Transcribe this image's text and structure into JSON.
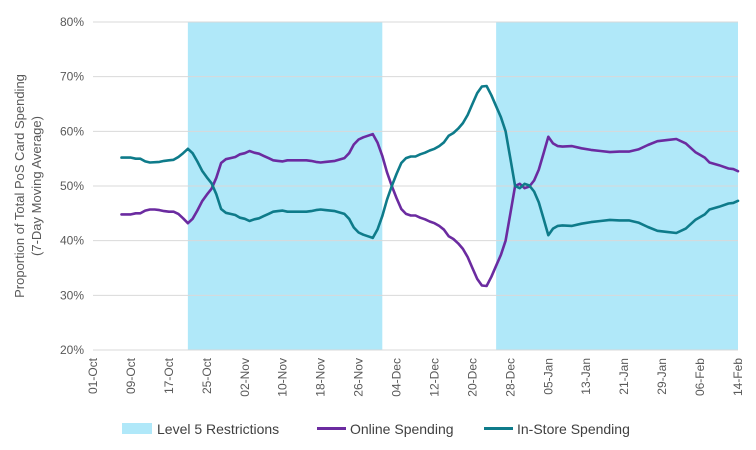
{
  "chart_data": {
    "type": "line",
    "ylabel_lines": [
      "Proportion of Total PoS Card Spending",
      "(7-Day Moving Average)"
    ],
    "ylim": [
      20,
      80
    ],
    "y_ticks": [
      20,
      30,
      40,
      50,
      60,
      70,
      80
    ],
    "y_tick_labels": [
      "20%",
      "30%",
      "40%",
      "50%",
      "60%",
      "70%",
      "80%"
    ],
    "x_range": [
      "2020-10-01",
      "2021-02-14"
    ],
    "x_ticks": [
      "2020-10-01",
      "2020-10-09",
      "2020-10-17",
      "2020-10-25",
      "2020-11-02",
      "2020-11-10",
      "2020-11-18",
      "2020-11-26",
      "2020-12-04",
      "2020-12-12",
      "2020-12-20",
      "2020-12-28",
      "2021-01-05",
      "2021-01-13",
      "2021-01-21",
      "2021-01-29",
      "2021-02-06",
      "2021-02-14"
    ],
    "x_tick_labels": [
      "01-Oct",
      "09-Oct",
      "17-Oct",
      "25-Oct",
      "02-Nov",
      "10-Nov",
      "18-Nov",
      "26-Nov",
      "04-Dec",
      "12-Dec",
      "20-Dec",
      "28-Dec",
      "05-Jan",
      "13-Jan",
      "21-Jan",
      "29-Jan",
      "06-Feb",
      "14-Feb"
    ],
    "grid": {
      "horizontal": true,
      "vertical": false
    },
    "legend_position": "bottom",
    "shaded_periods": {
      "name": "Level 5 Restrictions",
      "color": "#b0e8f9",
      "ranges": [
        [
          "2020-10-21",
          "2020-12-01"
        ],
        [
          "2020-12-25",
          "2021-02-14"
        ]
      ]
    },
    "series": [
      {
        "name": "Online Spending",
        "color": "#6b2ba0",
        "points": [
          [
            "2020-10-07",
            44.8
          ],
          [
            "2020-10-09",
            44.8
          ],
          [
            "2020-10-10",
            45.0
          ],
          [
            "2020-10-11",
            45.0
          ],
          [
            "2020-10-12",
            45.5
          ],
          [
            "2020-10-13",
            45.7
          ],
          [
            "2020-10-14",
            45.7
          ],
          [
            "2020-10-15",
            45.6
          ],
          [
            "2020-10-16",
            45.4
          ],
          [
            "2020-10-17",
            45.3
          ],
          [
            "2020-10-18",
            45.3
          ],
          [
            "2020-10-19",
            44.9
          ],
          [
            "2020-10-20",
            44.1
          ],
          [
            "2020-10-21",
            43.2
          ],
          [
            "2020-10-22",
            44.0
          ],
          [
            "2020-10-23",
            45.5
          ],
          [
            "2020-10-24",
            47.2
          ],
          [
            "2020-10-25",
            48.4
          ],
          [
            "2020-10-26",
            49.5
          ],
          [
            "2020-10-27",
            51.5
          ],
          [
            "2020-10-28",
            54.2
          ],
          [
            "2020-10-29",
            54.9
          ],
          [
            "2020-10-30",
            55.1
          ],
          [
            "2020-10-31",
            55.3
          ],
          [
            "2020-11-01",
            55.8
          ],
          [
            "2020-11-02",
            56.0
          ],
          [
            "2020-11-03",
            56.4
          ],
          [
            "2020-11-04",
            56.1
          ],
          [
            "2020-11-05",
            55.9
          ],
          [
            "2020-11-06",
            55.5
          ],
          [
            "2020-11-07",
            55.1
          ],
          [
            "2020-11-08",
            54.7
          ],
          [
            "2020-11-09",
            54.6
          ],
          [
            "2020-11-10",
            54.5
          ],
          [
            "2020-11-11",
            54.7
          ],
          [
            "2020-11-13",
            54.7
          ],
          [
            "2020-11-15",
            54.7
          ],
          [
            "2020-11-16",
            54.6
          ],
          [
            "2020-11-17",
            54.4
          ],
          [
            "2020-11-18",
            54.3
          ],
          [
            "2020-11-19",
            54.4
          ],
          [
            "2020-11-21",
            54.6
          ],
          [
            "2020-11-23",
            55.1
          ],
          [
            "2020-11-24",
            56.0
          ],
          [
            "2020-11-25",
            57.6
          ],
          [
            "2020-11-26",
            58.5
          ],
          [
            "2020-11-27",
            58.9
          ],
          [
            "2020-11-28",
            59.2
          ],
          [
            "2020-11-29",
            59.5
          ],
          [
            "2020-11-30",
            57.9
          ],
          [
            "2020-12-01",
            55.5
          ],
          [
            "2020-12-02",
            52.5
          ],
          [
            "2020-12-03",
            50.0
          ],
          [
            "2020-12-04",
            47.8
          ],
          [
            "2020-12-05",
            45.8
          ],
          [
            "2020-12-06",
            44.9
          ],
          [
            "2020-12-07",
            44.6
          ],
          [
            "2020-12-08",
            44.6
          ],
          [
            "2020-12-09",
            44.2
          ],
          [
            "2020-12-10",
            43.9
          ],
          [
            "2020-12-11",
            43.5
          ],
          [
            "2020-12-12",
            43.2
          ],
          [
            "2020-12-13",
            42.7
          ],
          [
            "2020-12-14",
            42.0
          ],
          [
            "2020-12-15",
            40.8
          ],
          [
            "2020-12-16",
            40.3
          ],
          [
            "2020-12-17",
            39.5
          ],
          [
            "2020-12-18",
            38.5
          ],
          [
            "2020-12-19",
            37.0
          ],
          [
            "2020-12-20",
            35.0
          ],
          [
            "2020-12-21",
            33.0
          ],
          [
            "2020-12-22",
            31.8
          ],
          [
            "2020-12-23",
            31.7
          ],
          [
            "2020-12-24",
            33.4
          ],
          [
            "2020-12-25",
            35.4
          ],
          [
            "2020-12-26",
            37.4
          ],
          [
            "2020-12-27",
            40.0
          ],
          [
            "2020-12-28",
            45.0
          ],
          [
            "2020-12-29",
            50.0
          ],
          [
            "2020-12-30",
            50.4
          ],
          [
            "2020-12-31",
            49.6
          ],
          [
            "2021-01-01",
            49.9
          ],
          [
            "2021-01-02",
            51.0
          ],
          [
            "2021-01-03",
            53.0
          ],
          [
            "2021-01-04",
            56.0
          ],
          [
            "2021-01-05",
            59.0
          ],
          [
            "2021-01-06",
            57.8
          ],
          [
            "2021-01-07",
            57.3
          ],
          [
            "2021-01-08",
            57.2
          ],
          [
            "2021-01-10",
            57.3
          ],
          [
            "2021-01-12",
            56.9
          ],
          [
            "2021-01-14",
            56.6
          ],
          [
            "2021-01-16",
            56.4
          ],
          [
            "2021-01-18",
            56.2
          ],
          [
            "2021-01-20",
            56.3
          ],
          [
            "2021-01-22",
            56.3
          ],
          [
            "2021-01-24",
            56.7
          ],
          [
            "2021-01-26",
            57.5
          ],
          [
            "2021-01-28",
            58.2
          ],
          [
            "2021-01-30",
            58.4
          ],
          [
            "2021-02-01",
            58.6
          ],
          [
            "2021-02-03",
            57.8
          ],
          [
            "2021-02-05",
            56.2
          ],
          [
            "2021-02-07",
            55.2
          ],
          [
            "2021-02-08",
            54.3
          ],
          [
            "2021-02-10",
            53.8
          ],
          [
            "2021-02-12",
            53.2
          ],
          [
            "2021-02-13",
            53.1
          ],
          [
            "2021-02-14",
            52.7
          ]
        ]
      },
      {
        "name": "In-Store Spending",
        "color": "#0e7b8a",
        "points": [
          [
            "2020-10-07",
            55.2
          ],
          [
            "2020-10-09",
            55.2
          ],
          [
            "2020-10-10",
            55.0
          ],
          [
            "2020-10-11",
            55.0
          ],
          [
            "2020-10-12",
            54.5
          ],
          [
            "2020-10-13",
            54.3
          ],
          [
            "2020-10-15",
            54.4
          ],
          [
            "2020-10-16",
            54.6
          ],
          [
            "2020-10-17",
            54.7
          ],
          [
            "2020-10-18",
            54.8
          ],
          [
            "2020-10-19",
            55.3
          ],
          [
            "2020-10-20",
            56.0
          ],
          [
            "2020-10-21",
            56.8
          ],
          [
            "2020-10-22",
            56.0
          ],
          [
            "2020-10-23",
            54.5
          ],
          [
            "2020-10-24",
            52.8
          ],
          [
            "2020-10-25",
            51.6
          ],
          [
            "2020-10-26",
            50.5
          ],
          [
            "2020-10-27",
            48.5
          ],
          [
            "2020-10-28",
            45.8
          ],
          [
            "2020-10-29",
            45.1
          ],
          [
            "2020-10-30",
            44.9
          ],
          [
            "2020-10-31",
            44.7
          ],
          [
            "2020-11-01",
            44.2
          ],
          [
            "2020-11-02",
            44.0
          ],
          [
            "2020-11-03",
            43.6
          ],
          [
            "2020-11-04",
            43.9
          ],
          [
            "2020-11-05",
            44.1
          ],
          [
            "2020-11-06",
            44.5
          ],
          [
            "2020-11-07",
            44.9
          ],
          [
            "2020-11-08",
            45.3
          ],
          [
            "2020-11-09",
            45.4
          ],
          [
            "2020-11-10",
            45.5
          ],
          [
            "2020-11-11",
            45.3
          ],
          [
            "2020-11-13",
            45.3
          ],
          [
            "2020-11-15",
            45.3
          ],
          [
            "2020-11-16",
            45.4
          ],
          [
            "2020-11-17",
            45.6
          ],
          [
            "2020-11-18",
            45.7
          ],
          [
            "2020-11-19",
            45.6
          ],
          [
            "2020-11-21",
            45.4
          ],
          [
            "2020-11-23",
            44.9
          ],
          [
            "2020-11-24",
            44.0
          ],
          [
            "2020-11-25",
            42.4
          ],
          [
            "2020-11-26",
            41.5
          ],
          [
            "2020-11-27",
            41.1
          ],
          [
            "2020-11-28",
            40.8
          ],
          [
            "2020-11-29",
            40.5
          ],
          [
            "2020-11-30",
            42.1
          ],
          [
            "2020-12-01",
            44.5
          ],
          [
            "2020-12-02",
            47.5
          ],
          [
            "2020-12-03",
            50.0
          ],
          [
            "2020-12-04",
            52.2
          ],
          [
            "2020-12-05",
            54.2
          ],
          [
            "2020-12-06",
            55.1
          ],
          [
            "2020-12-07",
            55.4
          ],
          [
            "2020-12-08",
            55.4
          ],
          [
            "2020-12-09",
            55.8
          ],
          [
            "2020-12-10",
            56.1
          ],
          [
            "2020-12-11",
            56.5
          ],
          [
            "2020-12-12",
            56.8
          ],
          [
            "2020-12-13",
            57.3
          ],
          [
            "2020-12-14",
            58.0
          ],
          [
            "2020-12-15",
            59.2
          ],
          [
            "2020-12-16",
            59.7
          ],
          [
            "2020-12-17",
            60.5
          ],
          [
            "2020-12-18",
            61.5
          ],
          [
            "2020-12-19",
            63.0
          ],
          [
            "2020-12-20",
            65.0
          ],
          [
            "2020-12-21",
            67.0
          ],
          [
            "2020-12-22",
            68.2
          ],
          [
            "2020-12-23",
            68.3
          ],
          [
            "2020-12-24",
            66.6
          ],
          [
            "2020-12-25",
            64.6
          ],
          [
            "2020-12-26",
            62.6
          ],
          [
            "2020-12-27",
            60.0
          ],
          [
            "2020-12-28",
            55.0
          ],
          [
            "2020-12-29",
            50.0
          ],
          [
            "2020-12-30",
            49.6
          ],
          [
            "2020-12-31",
            50.4
          ],
          [
            "2021-01-01",
            50.1
          ],
          [
            "2021-01-02",
            49.0
          ],
          [
            "2021-01-03",
            47.0
          ],
          [
            "2021-01-04",
            44.0
          ],
          [
            "2021-01-05",
            41.0
          ],
          [
            "2021-01-06",
            42.2
          ],
          [
            "2021-01-07",
            42.7
          ],
          [
            "2021-01-08",
            42.8
          ],
          [
            "2021-01-10",
            42.7
          ],
          [
            "2021-01-12",
            43.1
          ],
          [
            "2021-01-14",
            43.4
          ],
          [
            "2021-01-16",
            43.6
          ],
          [
            "2021-01-18",
            43.8
          ],
          [
            "2021-01-20",
            43.7
          ],
          [
            "2021-01-22",
            43.7
          ],
          [
            "2021-01-24",
            43.3
          ],
          [
            "2021-01-26",
            42.5
          ],
          [
            "2021-01-28",
            41.8
          ],
          [
            "2021-01-30",
            41.6
          ],
          [
            "2021-02-01",
            41.4
          ],
          [
            "2021-02-03",
            42.2
          ],
          [
            "2021-02-05",
            43.8
          ],
          [
            "2021-02-07",
            44.8
          ],
          [
            "2021-02-08",
            45.7
          ],
          [
            "2021-02-10",
            46.2
          ],
          [
            "2021-02-12",
            46.8
          ],
          [
            "2021-02-13",
            46.9
          ],
          [
            "2021-02-14",
            47.3
          ]
        ]
      }
    ]
  }
}
